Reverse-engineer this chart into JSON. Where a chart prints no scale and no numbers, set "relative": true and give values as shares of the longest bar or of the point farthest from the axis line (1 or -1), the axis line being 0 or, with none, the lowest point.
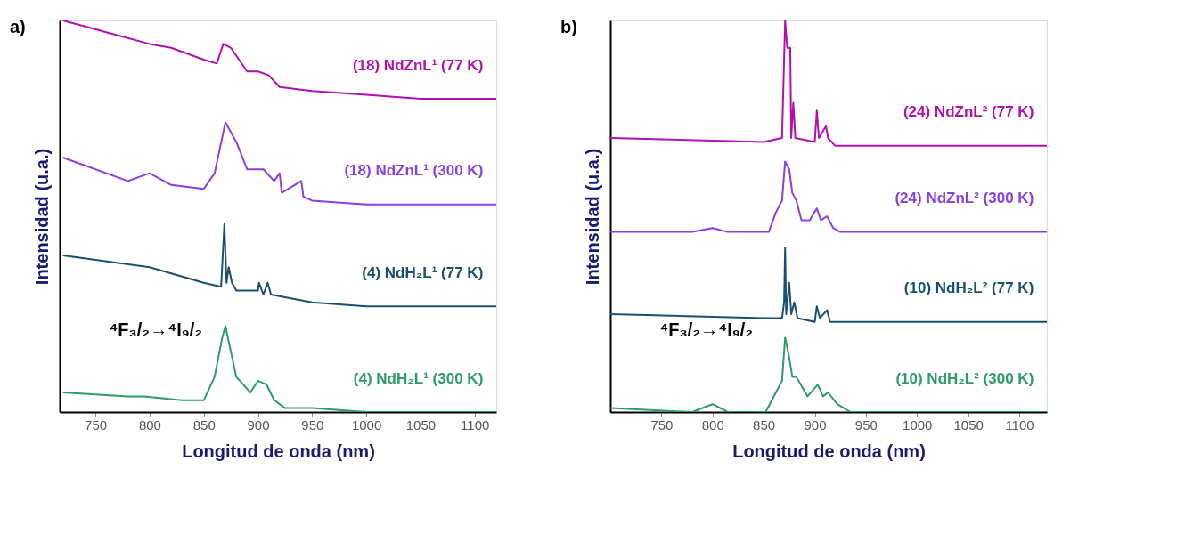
{
  "chart_data": [
    {
      "type": "line",
      "title": "a)",
      "xlabel": "Longitud de onda (nm)",
      "ylabel": "Intensidad (u.a.)",
      "relative": true,
      "xlim": [
        717,
        1120
      ],
      "xticks": [
        750,
        800,
        850,
        900,
        950,
        1000,
        1050,
        1100
      ],
      "grid": false,
      "legend": false,
      "tick_labels": "x",
      "marker": "none",
      "line_style": "solid",
      "annotations": [
        "⁴F₃/₂→⁴I₉/₂"
      ],
      "series": [
        {
          "name": "(18) NdZnL¹ (77 K)",
          "color": "#b010b0",
          "x": [
            720,
            760,
            800,
            820,
            850,
            862,
            868,
            875,
            890,
            900,
            910,
            920,
            950,
            1000,
            1050,
            1100,
            1120
          ],
          "values": [
            1.0,
            0.97,
            0.94,
            0.93,
            0.9,
            0.89,
            0.94,
            0.93,
            0.87,
            0.87,
            0.86,
            0.83,
            0.82,
            0.81,
            0.8,
            0.8,
            0.8
          ]
        },
        {
          "name": "(18) NdZnL¹ (300 K)",
          "color": "#8a3fe0",
          "x": [
            720,
            780,
            800,
            820,
            850,
            860,
            870,
            880,
            890,
            905,
            915,
            920,
            922,
            940,
            942,
            950,
            1000,
            1050,
            1100,
            1120
          ],
          "values": [
            0.65,
            0.59,
            0.61,
            0.58,
            0.57,
            0.61,
            0.74,
            0.69,
            0.62,
            0.62,
            0.59,
            0.61,
            0.56,
            0.59,
            0.55,
            0.54,
            0.53,
            0.53,
            0.53,
            0.53
          ]
        },
        {
          "name": "(4) NdH₂L¹ (77 K)",
          "color": "#1b4f72",
          "x": [
            720,
            800,
            850,
            866,
            869,
            871,
            873,
            876,
            880,
            900,
            901,
            905,
            909,
            912,
            950,
            1000,
            1050,
            1120
          ],
          "values": [
            0.4,
            0.37,
            0.33,
            0.32,
            0.48,
            0.33,
            0.37,
            0.33,
            0.31,
            0.31,
            0.33,
            0.3,
            0.33,
            0.3,
            0.28,
            0.27,
            0.27,
            0.27
          ]
        },
        {
          "name": "(4) NdH₂L¹ (300 K)",
          "color": "#2e9b6a",
          "x": [
            720,
            780,
            795,
            830,
            850,
            860,
            867,
            870,
            873,
            880,
            893,
            900,
            908,
            915,
            925,
            950,
            1000,
            1120
          ],
          "values": [
            0.05,
            0.04,
            0.04,
            0.03,
            0.03,
            0.09,
            0.19,
            0.22,
            0.18,
            0.09,
            0.05,
            0.08,
            0.07,
            0.03,
            0.01,
            0.01,
            0.0,
            0.0
          ]
        }
      ]
    },
    {
      "type": "line",
      "title": "b)",
      "xlabel": "Longitud de onda (nm)",
      "ylabel": "Intensidad (u.a.)",
      "relative": true,
      "xlim": [
        700,
        1127
      ],
      "xticks": [
        750,
        800,
        850,
        900,
        950,
        1000,
        1050,
        1100
      ],
      "grid": false,
      "legend": false,
      "tick_labels": "x",
      "marker": "none",
      "line_style": "solid",
      "annotations": [
        "⁴F₃/₂→⁴I₉/₂"
      ],
      "series": [
        {
          "name": "(24) NdZnL² (77 K)",
          "color": "#b010b0",
          "x": [
            700,
            850,
            868,
            871,
            873,
            876,
            877,
            879,
            881,
            900,
            902,
            904,
            911,
            913,
            920,
            1127
          ],
          "values": [
            0.7,
            0.69,
            0.7,
            1.0,
            0.93,
            0.93,
            0.7,
            0.79,
            0.7,
            0.69,
            0.77,
            0.7,
            0.73,
            0.7,
            0.68,
            0.68
          ]
        },
        {
          "name": "(24) NdZnL² (300 K)",
          "color": "#8a3fe0",
          "x": [
            700,
            780,
            800,
            815,
            855,
            862,
            868,
            871,
            875,
            878,
            882,
            887,
            895,
            902,
            906,
            912,
            918,
            925,
            1127
          ],
          "values": [
            0.46,
            0.46,
            0.47,
            0.46,
            0.46,
            0.51,
            0.54,
            0.64,
            0.62,
            0.56,
            0.54,
            0.49,
            0.49,
            0.52,
            0.49,
            0.5,
            0.47,
            0.46,
            0.46
          ]
        },
        {
          "name": "(10) NdH₂L² (77 K)",
          "color": "#1b4f72",
          "x": [
            700,
            850,
            868,
            870,
            871,
            872,
            875,
            877,
            880,
            883,
            900,
            902,
            905,
            912,
            915,
            940,
            1127
          ],
          "values": [
            0.25,
            0.24,
            0.24,
            0.28,
            0.42,
            0.25,
            0.33,
            0.25,
            0.28,
            0.24,
            0.23,
            0.27,
            0.24,
            0.26,
            0.23,
            0.23,
            0.23
          ]
        },
        {
          "name": "(10) NdH₂L² (300 K)",
          "color": "#2e9b6a",
          "x": [
            700,
            780,
            800,
            815,
            852,
            862,
            868,
            871,
            875,
            878,
            882,
            893,
            903,
            908,
            913,
            922,
            935,
            1127
          ],
          "values": [
            0.01,
            0.0,
            0.02,
            0.0,
            0.0,
            0.05,
            0.08,
            0.19,
            0.14,
            0.09,
            0.09,
            0.04,
            0.07,
            0.04,
            0.05,
            0.02,
            0.0,
            0.0
          ]
        }
      ]
    }
  ]
}
